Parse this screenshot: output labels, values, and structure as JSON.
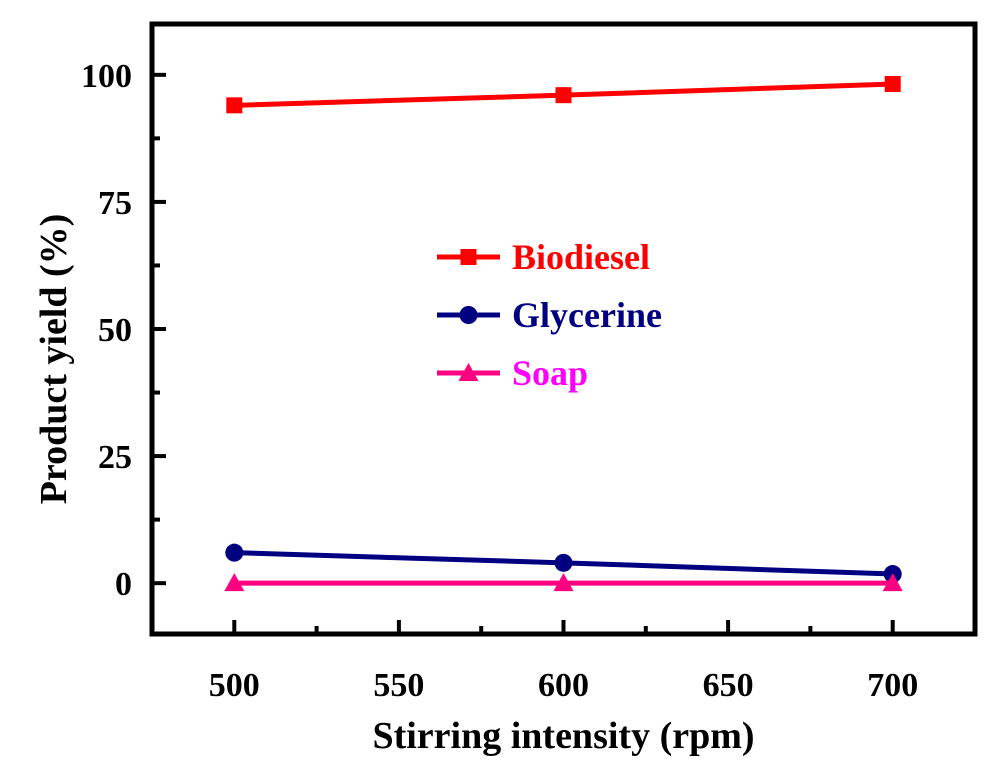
{
  "chart_data": {
    "type": "line",
    "title": "",
    "xlabel": "Stirring intensity (rpm)",
    "ylabel": "Product yield (%)",
    "xlim": [
      475,
      725
    ],
    "ylim": [
      -10,
      110
    ],
    "xticks": [
      500,
      550,
      600,
      650,
      700
    ],
    "yticks": [
      0,
      25,
      50,
      75,
      100
    ],
    "x_tick_labels": [
      "500",
      "550",
      "600",
      "650",
      "700"
    ],
    "y_tick_labels": [
      "0",
      "25",
      "50",
      "75",
      "100"
    ],
    "grid": false,
    "legend_position": "center",
    "series": [
      {
        "name": "Biodiesel",
        "color": "#ff0000",
        "marker": "square",
        "x": [
          500,
          600,
          700
        ],
        "values": [
          94,
          96,
          98.2
        ]
      },
      {
        "name": "Glycerine",
        "color": "#000080",
        "marker": "circle",
        "x": [
          500,
          600,
          700
        ],
        "values": [
          6,
          4,
          1.8
        ]
      },
      {
        "name": "Soap",
        "color": "#ff0080",
        "marker": "triangle",
        "x": [
          500,
          600,
          700
        ],
        "values": [
          0,
          0,
          0
        ]
      }
    ],
    "legend_text_colors": [
      "#ff0000",
      "#000080",
      "#ff00ff"
    ]
  }
}
